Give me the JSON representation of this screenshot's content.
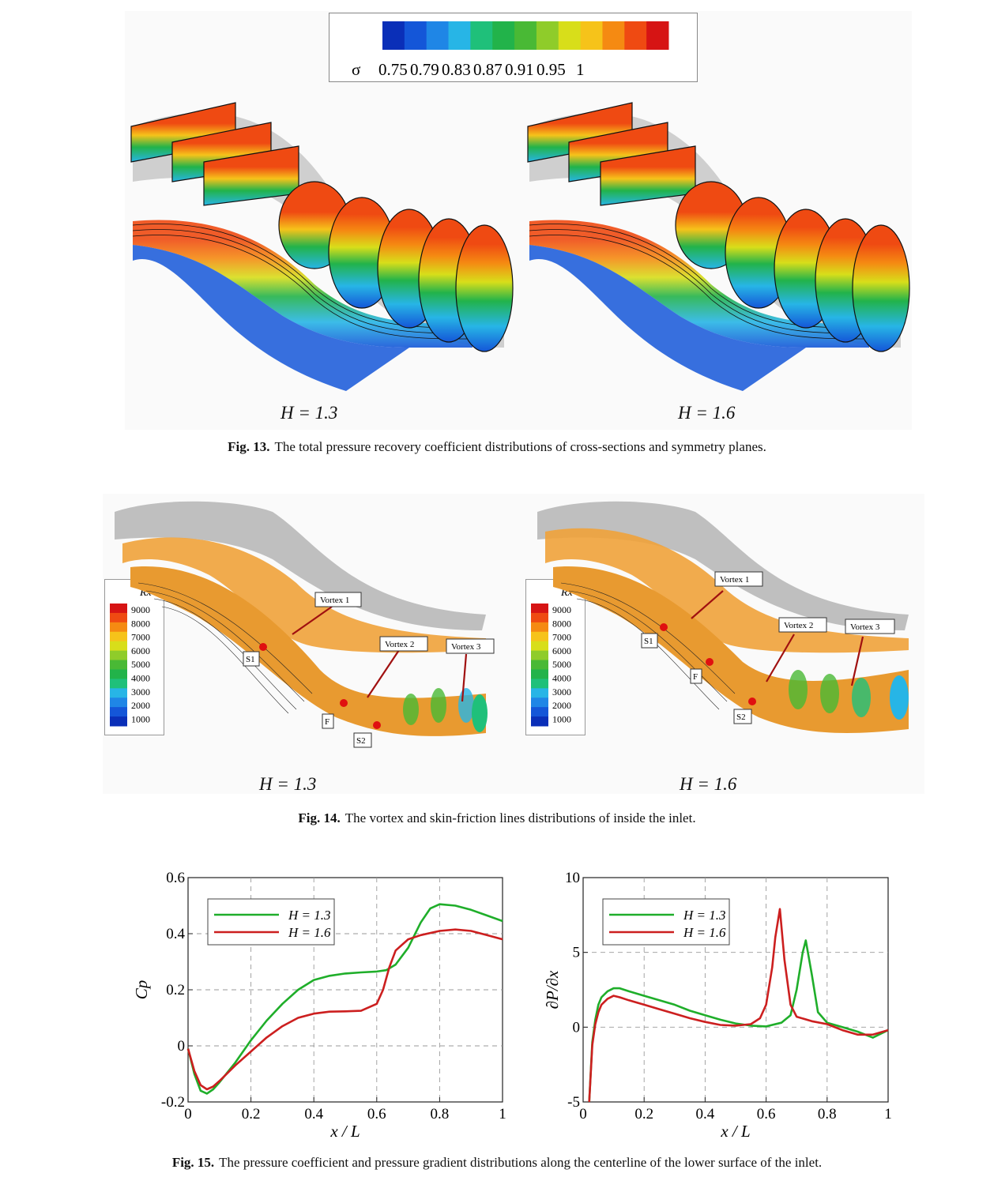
{
  "fig13": {
    "colorbar": {
      "symbol": "σ",
      "ticks": [
        "0.75",
        "0.79",
        "0.83",
        "0.87",
        "0.91",
        "0.95",
        "1"
      ],
      "colors": [
        "#0a2fb8",
        "#1456d8",
        "#1f86e6",
        "#27b5e6",
        "#1fc07a",
        "#22b34a",
        "#49b935",
        "#8fcc2a",
        "#d8de1a",
        "#f6c31a",
        "#f58a12",
        "#ef4a12",
        "#d61414"
      ]
    },
    "label_left": "H = 1.3",
    "label_right": "H = 1.6",
    "caption_bold": "Fig. 13.",
    "caption_text": "The total pressure recovery coefficient distributions of cross-sections and symmetry planes."
  },
  "fig14": {
    "legend": {
      "title": "Rx",
      "ticks": [
        "9000",
        "8000",
        "7000",
        "6000",
        "5000",
        "4000",
        "3000",
        "2000",
        "1000"
      ]
    },
    "left": {
      "annotations": [
        "Vortex 1",
        "Vortex 2",
        "Vortex 3",
        "S1",
        "F",
        "S2"
      ]
    },
    "right": {
      "annotations": [
        "Vortex 1",
        "Vortex 2",
        "Vortex 3",
        "S1",
        "F",
        "S2"
      ]
    },
    "label_left": "H = 1.3",
    "label_right": "H = 1.6",
    "caption_bold": "Fig. 14.",
    "caption_text": "The vortex and skin-friction lines distributions of inside the inlet."
  },
  "fig15": {
    "caption_bold": "Fig. 15.",
    "caption_text": "The pressure coefficient and pressure gradient distributions along the centerline of the lower surface of the inlet."
  },
  "chart_data": [
    {
      "type": "line",
      "xlabel": "x / L",
      "ylabel": "Cp",
      "xlim": [
        0,
        1
      ],
      "ylim": [
        -0.2,
        0.6
      ],
      "xticks": [
        "0",
        "0.2",
        "0.4",
        "0.6",
        "0.8",
        "1"
      ],
      "yticks": [
        "-0.2",
        "0",
        "0.2",
        "0.4",
        "0.6"
      ],
      "grid": true,
      "legend": "top-left",
      "series": [
        {
          "name": "H = 1.3",
          "color": "#1fae2a",
          "x": [
            0,
            0.02,
            0.04,
            0.06,
            0.08,
            0.1,
            0.15,
            0.2,
            0.25,
            0.3,
            0.35,
            0.4,
            0.45,
            0.5,
            0.55,
            0.6,
            0.63,
            0.66,
            0.7,
            0.74,
            0.77,
            0.8,
            0.85,
            0.9,
            0.95,
            1.0
          ],
          "y": [
            -0.01,
            -0.1,
            -0.16,
            -0.17,
            -0.155,
            -0.13,
            -0.06,
            0.02,
            0.09,
            0.15,
            0.2,
            0.235,
            0.25,
            0.258,
            0.262,
            0.265,
            0.27,
            0.29,
            0.35,
            0.44,
            0.49,
            0.505,
            0.5,
            0.485,
            0.465,
            0.445
          ]
        },
        {
          "name": "H = 1.6",
          "color": "#cc1f1f",
          "x": [
            0,
            0.02,
            0.04,
            0.06,
            0.08,
            0.1,
            0.15,
            0.2,
            0.25,
            0.3,
            0.35,
            0.4,
            0.45,
            0.5,
            0.55,
            0.6,
            0.62,
            0.64,
            0.66,
            0.7,
            0.74,
            0.8,
            0.85,
            0.9,
            0.95,
            1.0
          ],
          "y": [
            -0.01,
            -0.09,
            -0.14,
            -0.155,
            -0.145,
            -0.125,
            -0.07,
            -0.02,
            0.03,
            0.07,
            0.1,
            0.115,
            0.122,
            0.123,
            0.125,
            0.15,
            0.2,
            0.28,
            0.34,
            0.38,
            0.395,
            0.41,
            0.415,
            0.41,
            0.395,
            0.38
          ]
        }
      ]
    },
    {
      "type": "line",
      "xlabel": "x / L",
      "ylabel": "∂P/∂x",
      "xlim": [
        0,
        1
      ],
      "ylim": [
        -5,
        10
      ],
      "xticks": [
        "0",
        "0.2",
        "0.4",
        "0.6",
        "0.8",
        "1"
      ],
      "yticks": [
        "-5",
        "0",
        "5",
        "10"
      ],
      "grid": true,
      "legend": "top-left",
      "series": [
        {
          "name": "H = 1.3",
          "color": "#1fae2a",
          "x": [
            0.02,
            0.03,
            0.04,
            0.05,
            0.06,
            0.08,
            0.1,
            0.12,
            0.15,
            0.2,
            0.25,
            0.3,
            0.35,
            0.4,
            0.45,
            0.5,
            0.55,
            0.6,
            0.65,
            0.68,
            0.7,
            0.72,
            0.73,
            0.75,
            0.77,
            0.8,
            0.85,
            0.9,
            0.95,
            1.0
          ],
          "y": [
            -5,
            -1,
            0.5,
            1.5,
            2.0,
            2.4,
            2.6,
            2.6,
            2.4,
            2.1,
            1.8,
            1.5,
            1.1,
            0.8,
            0.5,
            0.25,
            0.1,
            0.05,
            0.3,
            0.8,
            2.5,
            5.0,
            5.8,
            3.5,
            1.0,
            0.3,
            0.0,
            -0.3,
            -0.7,
            -0.2
          ]
        },
        {
          "name": "H = 1.6",
          "color": "#cc1f1f",
          "x": [
            0.02,
            0.03,
            0.04,
            0.05,
            0.06,
            0.08,
            0.1,
            0.12,
            0.15,
            0.2,
            0.25,
            0.3,
            0.35,
            0.4,
            0.45,
            0.5,
            0.55,
            0.58,
            0.6,
            0.62,
            0.63,
            0.645,
            0.66,
            0.68,
            0.7,
            0.75,
            0.8,
            0.85,
            0.9,
            0.95,
            1.0
          ],
          "y": [
            -5,
            -1.2,
            0.2,
            1.0,
            1.5,
            1.9,
            2.1,
            2.0,
            1.8,
            1.5,
            1.2,
            0.9,
            0.6,
            0.35,
            0.15,
            0.1,
            0.2,
            0.6,
            1.5,
            4.0,
            6.0,
            7.9,
            4.5,
            1.5,
            0.7,
            0.4,
            0.2,
            -0.2,
            -0.5,
            -0.5,
            -0.2
          ]
        }
      ]
    }
  ]
}
